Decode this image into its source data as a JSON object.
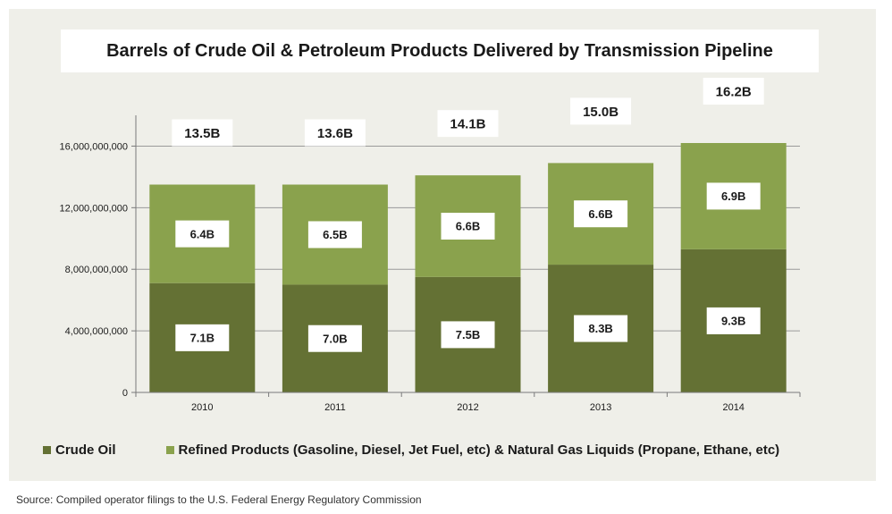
{
  "source_note": "Source: Compiled operator filings to the U.S. Federal Energy Regulatory Commission",
  "chart_data": {
    "type": "bar",
    "stacked": true,
    "title": "Barrels of Crude Oil & Petroleum Products Delivered by Transmission Pipeline",
    "categories": [
      "2010",
      "2011",
      "2012",
      "2013",
      "2014"
    ],
    "series": [
      {
        "name": "Crude Oil",
        "color": "#647134",
        "values": [
          7100000000,
          7000000000,
          7500000000,
          8300000000,
          9300000000
        ],
        "labels": [
          "7.1B",
          "7.0B",
          "7.5B",
          "8.3B",
          "9.3B"
        ]
      },
      {
        "name": "Refined Products (Gasoline, Diesel, Jet Fuel, etc) & Natural Gas Liquids (Propane, Ethane, etc)",
        "color": "#8aa24d",
        "values": [
          6400000000,
          6500000000,
          6600000000,
          6600000000,
          6900000000
        ],
        "labels": [
          "6.4B",
          "6.5B",
          "6.6B",
          "6.6B",
          "6.9B"
        ]
      }
    ],
    "totals": [
      "13.5B",
      "13.6B",
      "14.1B",
      "15.0B",
      "16.2B"
    ],
    "y_ticks": [
      0,
      4000000000,
      8000000000,
      12000000000,
      16000000000
    ],
    "y_tick_labels": [
      "0",
      "4,000,000,000",
      "8,000,000,000",
      "12,000,000,000",
      "16,000,000,000"
    ],
    "ylim": [
      0,
      18000000000
    ],
    "grid": true,
    "legend_position": "bottom"
  }
}
